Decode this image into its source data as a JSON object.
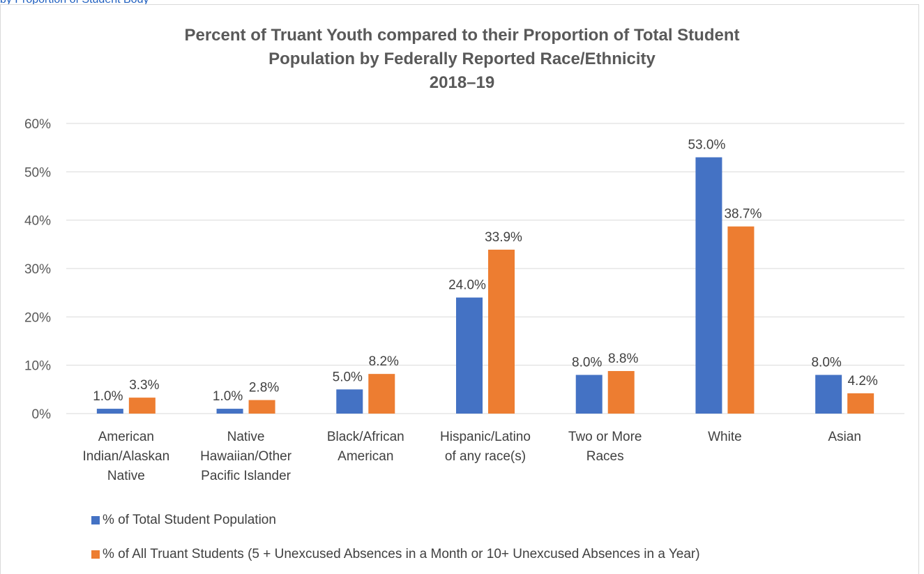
{
  "header": {
    "caption": "by Proportion of Student Body"
  },
  "chart_data": {
    "type": "bar",
    "title_lines": [
      "Percent of Truant Youth compared to their Proportion of Total Student",
      "Population by Federally Reported Race/Ethnicity",
      "2018–19"
    ],
    "categories": [
      [
        "American",
        "Indian/Alaskan",
        "Native"
      ],
      [
        "Native",
        "Hawaiian/Other",
        "Pacific Islander"
      ],
      [
        "Black/African",
        "American"
      ],
      [
        "Hispanic/Latino",
        "of any race(s)"
      ],
      [
        "Two or More",
        "Races"
      ],
      [
        "White"
      ],
      [
        "Asian"
      ]
    ],
    "series": [
      {
        "name": "% of Total Student Population",
        "color": "#4472c4",
        "values": [
          1.0,
          1.0,
          5.0,
          24.0,
          8.0,
          53.0,
          8.0
        ],
        "labels": [
          "1.0%",
          "1.0%",
          "5.0%",
          "24.0%",
          "8.0%",
          "53.0%",
          "8.0%"
        ]
      },
      {
        "name": "% of All Truant Students (5 + Unexcused Absences in a Month or 10+ Unexcused Absences in a Year)",
        "color": "#ed7d31",
        "values": [
          3.3,
          2.8,
          8.2,
          33.9,
          8.8,
          38.7,
          4.2
        ],
        "labels": [
          "3.3%",
          "2.8%",
          "8.2%",
          "33.9%",
          "8.8%",
          "38.7%",
          "4.2%"
        ]
      }
    ],
    "ylim": [
      0,
      60
    ],
    "yticks": [
      "0%",
      "10%",
      "20%",
      "30%",
      "40%",
      "50%",
      "60%"
    ],
    "grid": true,
    "legend_position": "bottom-left"
  }
}
